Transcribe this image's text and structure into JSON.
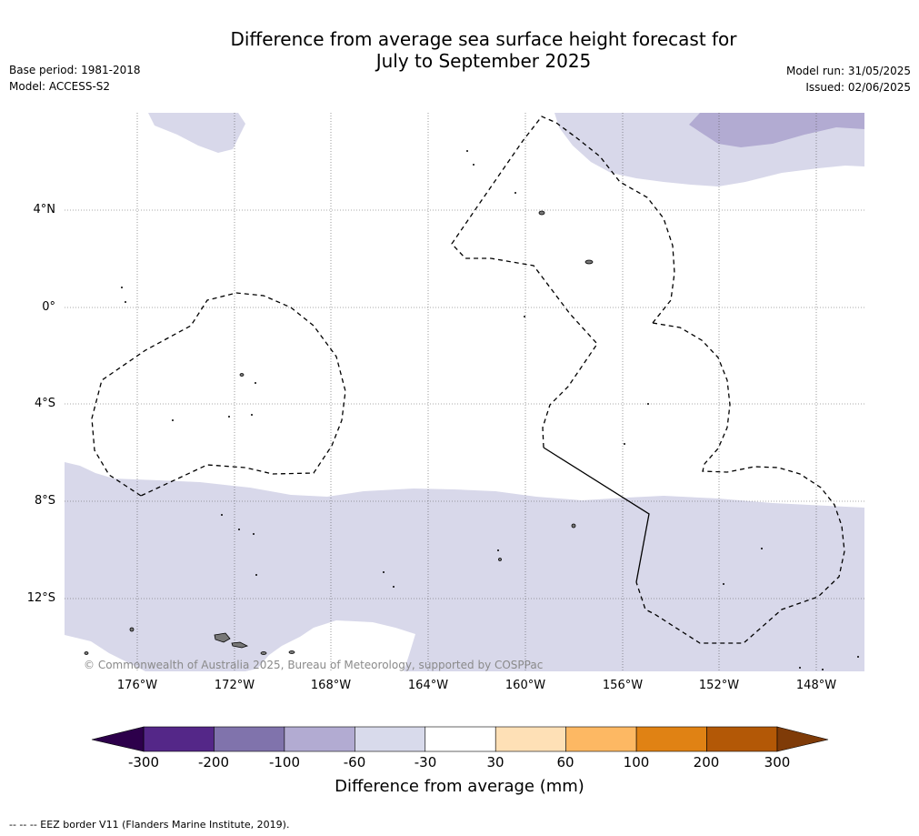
{
  "title_line1": "Difference from average sea surface height forecast for",
  "title_line2": "July to September 2025",
  "base_period": "Base period: 1981-2018",
  "model": "Model: ACCESS-S2",
  "model_run": "Model run: 31/05/2025",
  "issued": "Issued: 02/06/2025",
  "map": {
    "lat_labels": [
      "4°N",
      "0°",
      "4°S",
      "8°S",
      "12°S"
    ],
    "lon_labels": [
      "176°W",
      "172°W",
      "168°W",
      "164°W",
      "160°W",
      "156°W",
      "152°W",
      "148°W"
    ],
    "copyright": "© Commonwealth of Australia 2025, Bureau of Meteorology, supported by COSPPac",
    "fill_colors": {
      "light_purple": "#d8d8ea",
      "medium_purple": "#b2abd2"
    }
  },
  "colorbar": {
    "ticks": [
      "-300",
      "-200",
      "-100",
      "-60",
      "-30",
      "30",
      "60",
      "100",
      "200",
      "300"
    ],
    "colors": [
      "#2d004b",
      "#542788",
      "#8073ac",
      "#b2abd2",
      "#d8daeb",
      "#ffffff",
      "#fee0b6",
      "#fdb863",
      "#e08214",
      "#b35806",
      "#7f3b08"
    ],
    "label": "Difference from average (mm)"
  },
  "footnote": "--  --  -- EEZ border V11 (Flanders Marine Institute, 2019)."
}
